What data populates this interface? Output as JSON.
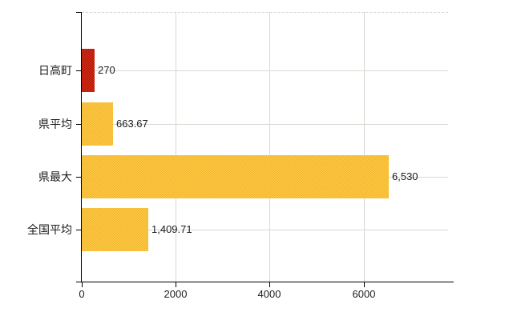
{
  "chart_data": {
    "type": "bar",
    "orientation": "horizontal",
    "title": "",
    "xlabel": "",
    "ylabel": "",
    "categories": [
      "日高町",
      "県平均",
      "県最大",
      "全国平均"
    ],
    "series": [
      {
        "name": "",
        "values": [
          270,
          663.67,
          6530,
          1409.71
        ]
      }
    ],
    "value_labels": [
      "270",
      "663.67",
      "6,530",
      "1,409.71"
    ],
    "bar_color_names": [
      "red",
      "yellow",
      "yellow",
      "yellow"
    ],
    "x_ticks": [
      0,
      2000,
      4000,
      6000
    ],
    "x_tick_labels": [
      "0",
      "2000",
      "4000",
      "6000"
    ],
    "xlim": [
      0,
      7800
    ],
    "grid": true,
    "legend": "none"
  },
  "colors": {
    "red": "#c32310",
    "red_light": "#d8301a",
    "red_dark": "#ad1505",
    "yellow": "#f7c03a",
    "yellow_light": "#fdd04a",
    "yellow_dark": "#f2b12a",
    "grid": "#d6dad2",
    "top_border": "#d9d3d3",
    "axis": "#000000",
    "text": "#1c1c1c",
    "background": "#ffffff"
  }
}
